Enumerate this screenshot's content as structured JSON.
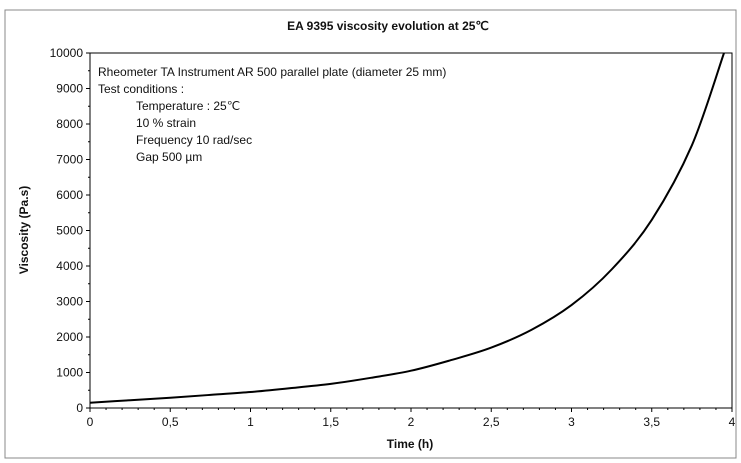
{
  "chart_data": {
    "type": "line",
    "title": "EA 9395 viscosity evolution at 25℃",
    "xlabel": "Time (h)",
    "ylabel": "Viscosity (Pa.s)",
    "xlim": [
      0,
      4
    ],
    "ylim": [
      0,
      10000
    ],
    "xticks": [
      0,
      0.5,
      1,
      1.5,
      2,
      2.5,
      3,
      3.5,
      4
    ],
    "xtick_labels": [
      "0",
      "0,5",
      "1",
      "1,5",
      "2",
      "2,5",
      "3",
      "3,5",
      "4"
    ],
    "yticks": [
      0,
      1000,
      2000,
      3000,
      4000,
      5000,
      6000,
      7000,
      8000,
      9000,
      10000
    ],
    "ytick_labels": [
      "0",
      "1000",
      "2000",
      "3000",
      "4000",
      "5000",
      "6000",
      "7000",
      "8000",
      "9000",
      "10000"
    ],
    "grid": false,
    "legend": "none",
    "annotation": [
      "Rheometer TA Instrument AR 500 parallel plate (diameter 25 mm)",
      "Test conditions :",
      "Temperature : 25℃",
      "10 % strain",
      "Frequency 10 rad/sec",
      "Gap 500 µm"
    ],
    "series": [
      {
        "color": "#000000",
        "x": [
          0,
          0.25,
          0.5,
          0.75,
          1,
          1.25,
          1.5,
          1.75,
          2,
          2.25,
          2.5,
          2.75,
          3,
          3.25,
          3.5,
          3.75,
          3.95
        ],
        "y": [
          150,
          220,
          290,
          370,
          450,
          560,
          680,
          850,
          1050,
          1350,
          1700,
          2200,
          2900,
          3900,
          5300,
          7400,
          10000
        ]
      }
    ]
  }
}
